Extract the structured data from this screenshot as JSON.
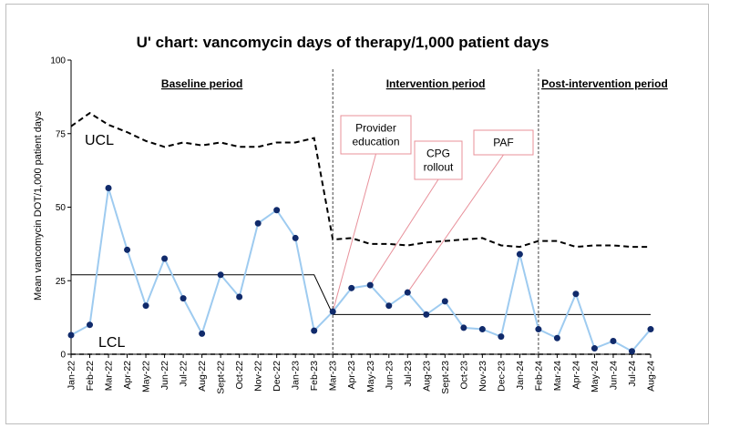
{
  "chart_data": {
    "type": "line",
    "title": "U' chart: vancomycin days of therapy/1,000 patient days",
    "ylabel": "Mean vancomycin DOT/1,000 patient days",
    "xlabel": "",
    "ylim": [
      0,
      100
    ],
    "yticks": [
      0,
      25,
      50,
      75,
      100
    ],
    "categories": [
      "Jan-22",
      "Feb-22",
      "Mar-22",
      "Apr-22",
      "May-22",
      "Jun-22",
      "Jul-22",
      "Aug-22",
      "Sept-22",
      "Oct-22",
      "Nov-22",
      "Dec-22",
      "Jan-23",
      "Feb-23",
      "Mar-23",
      "Apr-23",
      "May-23",
      "Jun-23",
      "Jul-23",
      "Aug-23",
      "Sept-23",
      "Oct-23",
      "Nov-23",
      "Dec-23",
      "Jan-24",
      "Feb-24",
      "Mar-24",
      "Apr-24",
      "May-24",
      "Jun-24",
      "Jul-24",
      "Aug-24"
    ],
    "series": [
      {
        "name": "Mean vancomycin DOT/1,000 patient days",
        "color": "#9ecbf0",
        "marker_color": "#102a6b",
        "values": [
          6.5,
          10,
          56.5,
          35.5,
          16.5,
          32.5,
          19,
          7,
          27,
          19.5,
          44.5,
          49,
          39.5,
          8,
          14.5,
          22.5,
          23.5,
          16.5,
          21,
          13.5,
          18,
          9,
          8.5,
          6,
          34,
          8.5,
          5.5,
          20.5,
          2,
          4.5,
          1,
          8.5
        ]
      },
      {
        "name": "UCL",
        "style": "dashed",
        "color": "#000000",
        "values": [
          77.5,
          82,
          78,
          75.5,
          72.5,
          70.5,
          72,
          71,
          72,
          70.5,
          70.5,
          72,
          72,
          73.5,
          39,
          39.5,
          37.5,
          37.5,
          37,
          38,
          38.5,
          39,
          39.5,
          37,
          36.5,
          38.5,
          38.5,
          36.5,
          37,
          37,
          36.5,
          36.5
        ]
      },
      {
        "name": "LCL",
        "style": "dashed",
        "color": "#000000",
        "values": [
          0,
          0,
          0,
          0,
          0,
          0,
          0,
          0,
          0,
          0,
          0,
          0,
          0,
          0,
          0,
          0,
          0,
          0,
          0,
          0,
          0,
          0,
          0,
          0,
          0,
          0,
          0,
          0,
          0,
          0,
          0,
          0
        ]
      },
      {
        "name": "Center line",
        "style": "solid",
        "color": "#000000",
        "points": [
          {
            "x": 0,
            "y": 27
          },
          {
            "x": 13,
            "y": 27
          },
          {
            "x": 14,
            "y": 13.5
          },
          {
            "x": 31,
            "y": 13.5
          }
        ]
      }
    ],
    "control_labels": {
      "ucl": "UCL",
      "lcl": "LCL"
    },
    "periods": [
      {
        "label": "Baseline period",
        "start_index": 0
      },
      {
        "label": "Intervention period",
        "start_index": 14
      },
      {
        "label": "Post-intervention period",
        "start_index": 25
      }
    ],
    "annotations": [
      {
        "lines": [
          "Provider",
          "education"
        ],
        "target_index": 14
      },
      {
        "lines": [
          "CPG",
          "rollout"
        ],
        "target_index": 16
      },
      {
        "lines": [
          "PAF"
        ],
        "target_index": 18
      }
    ]
  }
}
